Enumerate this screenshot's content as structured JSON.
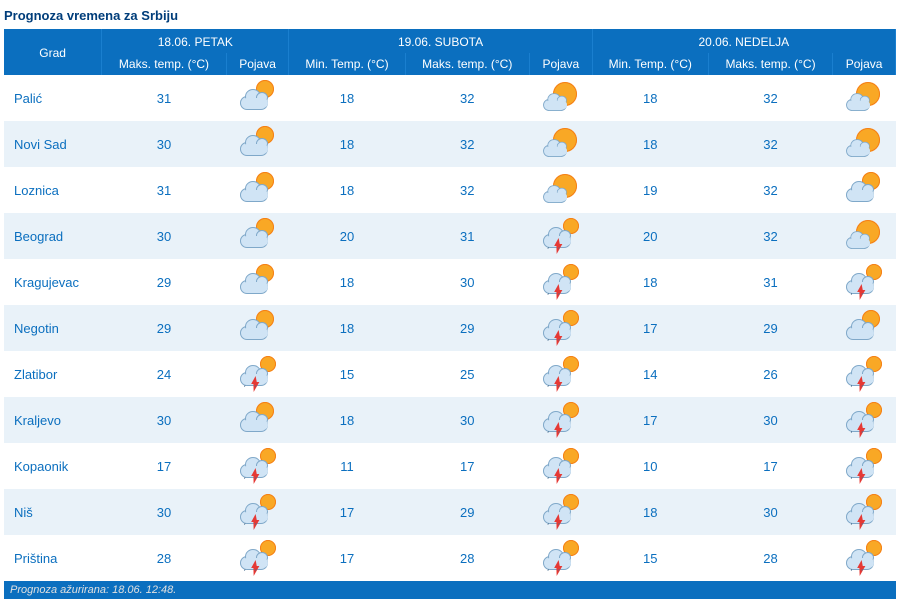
{
  "title": "Prognoza vremena za Srbiju",
  "footer": "Prognoza ažurirana:  18.06. 12:48.",
  "colors": {
    "header_bg": "#0b6fbf",
    "header_fg": "#ffffff",
    "row_even": "#e9f2f9",
    "row_odd": "#ffffff",
    "text_link": "#0b6fbf",
    "title": "#003d7a"
  },
  "headers": {
    "city": "Grad",
    "days": [
      {
        "date": "18.06. PETAK",
        "min_label": null,
        "max_label": "Maks. temp. (°C)",
        "cond_label": "Pojava"
      },
      {
        "date": "19.06. SUBOTA",
        "min_label": "Min. Temp. (°C)",
        "max_label": "Maks. temp. (°C)",
        "cond_label": "Pojava"
      },
      {
        "date": "20.06. NEDELJA",
        "min_label": "Min. Temp. (°C)",
        "max_label": "Maks. temp. (°C)",
        "cond_label": "Pojava"
      }
    ]
  },
  "icon_types": {
    "partly": "sun-behind-cloud",
    "sunny": "mostly-sunny-small-cloud",
    "storm": "cloud-sun-thunder-rain"
  },
  "rows": [
    {
      "city": "Palić",
      "d1": {
        "max": 31,
        "icon": "partly"
      },
      "d2": {
        "min": 18,
        "max": 32,
        "icon": "sunny"
      },
      "d3": {
        "min": 18,
        "max": 32,
        "icon": "sunny"
      }
    },
    {
      "city": "Novi Sad",
      "d1": {
        "max": 30,
        "icon": "partly"
      },
      "d2": {
        "min": 18,
        "max": 32,
        "icon": "sunny"
      },
      "d3": {
        "min": 18,
        "max": 32,
        "icon": "sunny"
      }
    },
    {
      "city": "Loznica",
      "d1": {
        "max": 31,
        "icon": "partly"
      },
      "d2": {
        "min": 18,
        "max": 32,
        "icon": "sunny"
      },
      "d3": {
        "min": 19,
        "max": 32,
        "icon": "partly"
      }
    },
    {
      "city": "Beograd",
      "d1": {
        "max": 30,
        "icon": "partly"
      },
      "d2": {
        "min": 20,
        "max": 31,
        "icon": "storm"
      },
      "d3": {
        "min": 20,
        "max": 32,
        "icon": "sunny"
      }
    },
    {
      "city": "Kragujevac",
      "d1": {
        "max": 29,
        "icon": "partly"
      },
      "d2": {
        "min": 18,
        "max": 30,
        "icon": "storm"
      },
      "d3": {
        "min": 18,
        "max": 31,
        "icon": "storm"
      }
    },
    {
      "city": "Negotin",
      "d1": {
        "max": 29,
        "icon": "partly"
      },
      "d2": {
        "min": 18,
        "max": 29,
        "icon": "storm"
      },
      "d3": {
        "min": 17,
        "max": 29,
        "icon": "partly"
      }
    },
    {
      "city": "Zlatibor",
      "d1": {
        "max": 24,
        "icon": "storm"
      },
      "d2": {
        "min": 15,
        "max": 25,
        "icon": "storm"
      },
      "d3": {
        "min": 14,
        "max": 26,
        "icon": "storm"
      }
    },
    {
      "city": "Kraljevo",
      "d1": {
        "max": 30,
        "icon": "partly"
      },
      "d2": {
        "min": 18,
        "max": 30,
        "icon": "storm"
      },
      "d3": {
        "min": 17,
        "max": 30,
        "icon": "storm"
      }
    },
    {
      "city": "Kopaonik",
      "d1": {
        "max": 17,
        "icon": "storm"
      },
      "d2": {
        "min": 11,
        "max": 17,
        "icon": "storm"
      },
      "d3": {
        "min": 10,
        "max": 17,
        "icon": "storm"
      }
    },
    {
      "city": "Niš",
      "d1": {
        "max": 30,
        "icon": "storm"
      },
      "d2": {
        "min": 17,
        "max": 29,
        "icon": "storm"
      },
      "d3": {
        "min": 18,
        "max": 30,
        "icon": "storm"
      }
    },
    {
      "city": "Priština",
      "d1": {
        "max": 28,
        "icon": "storm"
      },
      "d2": {
        "min": 17,
        "max": 28,
        "icon": "storm"
      },
      "d3": {
        "min": 15,
        "max": 28,
        "icon": "storm"
      }
    }
  ]
}
